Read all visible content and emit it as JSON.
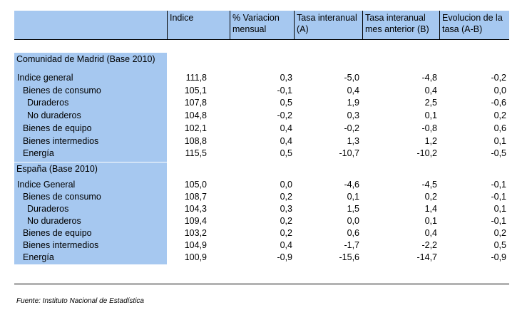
{
  "columns": [
    {
      "label": "Indice"
    },
    {
      "label": "% Variacion mensual"
    },
    {
      "label": "Tasa interanual (A)"
    },
    {
      "label": "Tasa interanual mes anterior (B)"
    },
    {
      "label": "Evolucion de la tasa (A-B)"
    }
  ],
  "sections": [
    {
      "title": "Comunidad de Madrid (Base 2010)",
      "rows": [
        {
          "label": "Indice general",
          "indent": 0,
          "values": [
            "111,8",
            "0,3",
            "-5,0",
            "-4,8",
            "-0,2"
          ]
        },
        {
          "label": "Bienes de consumo",
          "indent": 1,
          "values": [
            "105,1",
            "-0,1",
            "0,4",
            "0,4",
            "0,0"
          ]
        },
        {
          "label": "Duraderos",
          "indent": 2,
          "values": [
            "107,8",
            "0,5",
            "1,9",
            "2,5",
            "-0,6"
          ]
        },
        {
          "label": "No duraderos",
          "indent": 2,
          "values": [
            "104,8",
            "-0,2",
            "0,3",
            "0,1",
            "0,2"
          ]
        },
        {
          "label": "Bienes de equipo",
          "indent": 1,
          "values": [
            "102,1",
            "0,4",
            "-0,2",
            "-0,8",
            "0,6"
          ]
        },
        {
          "label": "Bienes intermedios",
          "indent": 1,
          "values": [
            "108,8",
            "0,4",
            "1,3",
            "1,2",
            "0,1"
          ]
        },
        {
          "label": "Energía",
          "indent": 1,
          "values": [
            "115,5",
            "0,5",
            "-10,7",
            "-10,2",
            "-0,5"
          ]
        }
      ]
    },
    {
      "title": "España (Base 2010)",
      "rows": [
        {
          "label": "Indice General",
          "indent": 0,
          "values": [
            "105,0",
            "0,0",
            "-4,6",
            "-4,5",
            "-0,1"
          ]
        },
        {
          "label": "Bienes de consumo",
          "indent": 1,
          "values": [
            "108,7",
            "0,2",
            "0,1",
            "0,2",
            "-0,1"
          ]
        },
        {
          "label": "Duraderos",
          "indent": 2,
          "values": [
            "104,3",
            "0,3",
            "1,5",
            "1,4",
            "0,1"
          ]
        },
        {
          "label": "No duraderos",
          "indent": 2,
          "values": [
            "109,4",
            "0,2",
            "0,0",
            "0,1",
            "-0,1"
          ]
        },
        {
          "label": "Bienes de equipo",
          "indent": 1,
          "values": [
            "103,2",
            "0,2",
            "0,6",
            "0,4",
            "0,2"
          ]
        },
        {
          "label": "Bienes intermedios",
          "indent": 1,
          "values": [
            "104,9",
            "0,4",
            "-1,7",
            "-2,2",
            "0,5"
          ]
        },
        {
          "label": "Energía",
          "indent": 1,
          "values": [
            "100,9",
            "-0,9",
            "-15,6",
            "-14,7",
            "-0,9"
          ]
        }
      ]
    }
  ],
  "source": "Fuente: Instituto Nacional de Estadística",
  "colors": {
    "header_bg": "#a6c8f0",
    "text": "#000000"
  }
}
